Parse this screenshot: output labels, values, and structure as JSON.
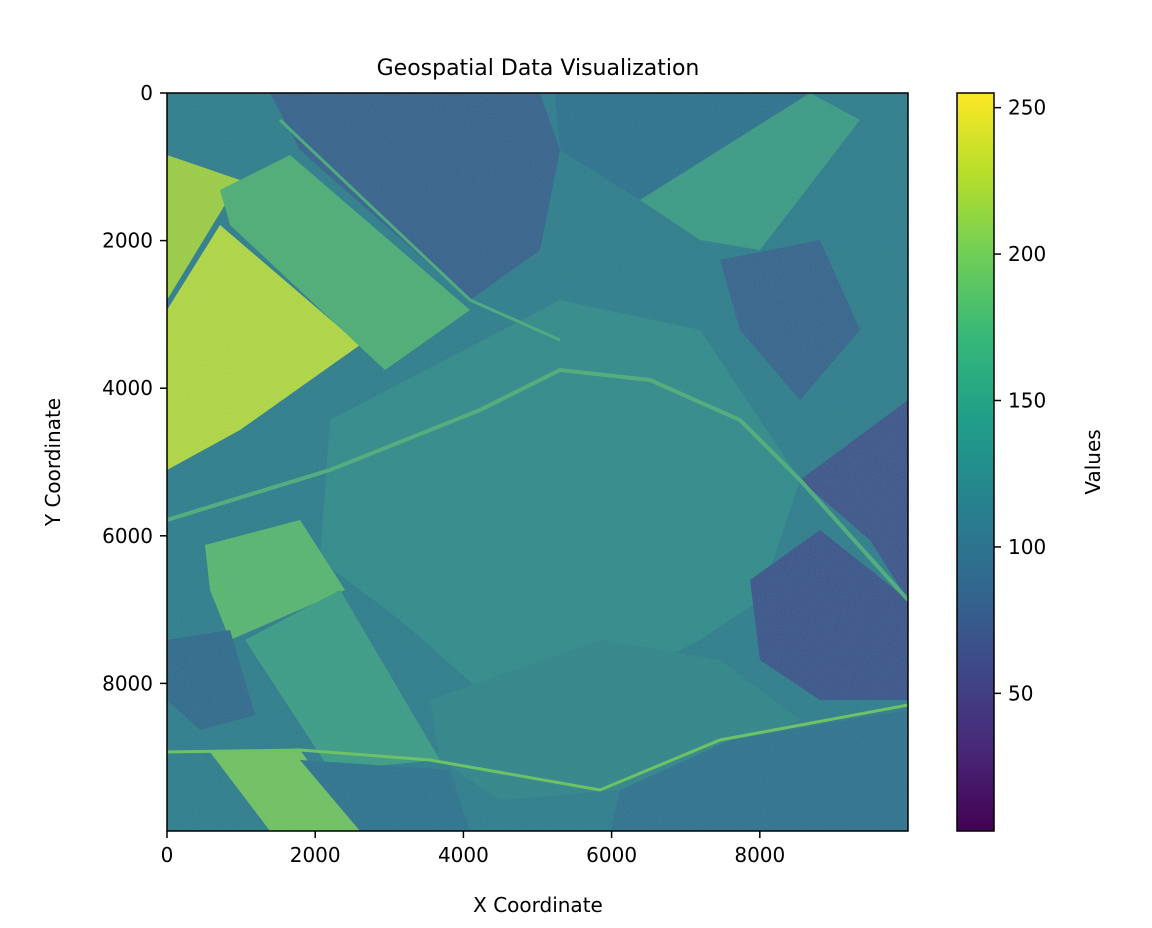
{
  "chart_data": {
    "type": "heatmap",
    "title": "Geospatial Data Visualization",
    "xlabel": "X Coordinate",
    "ylabel": "Y Coordinate",
    "xlim": [
      0,
      10000
    ],
    "ylim": [
      10000,
      0
    ],
    "x_ticks": [
      0,
      2000,
      4000,
      6000,
      8000
    ],
    "y_ticks": [
      0,
      2000,
      4000,
      6000,
      8000
    ],
    "grid": false,
    "colormap": "viridis",
    "colorbar": {
      "label": "Values",
      "range": [
        3,
        255
      ],
      "ticks": [
        50,
        100,
        150,
        200,
        250
      ]
    },
    "image_description_free": true
  },
  "colors": {
    "viridis": [
      "#440154",
      "#482878",
      "#3e4989",
      "#31688e",
      "#26828e",
      "#1f9e89",
      "#35b779",
      "#6ece58",
      "#b5de2b",
      "#fde725"
    ]
  }
}
